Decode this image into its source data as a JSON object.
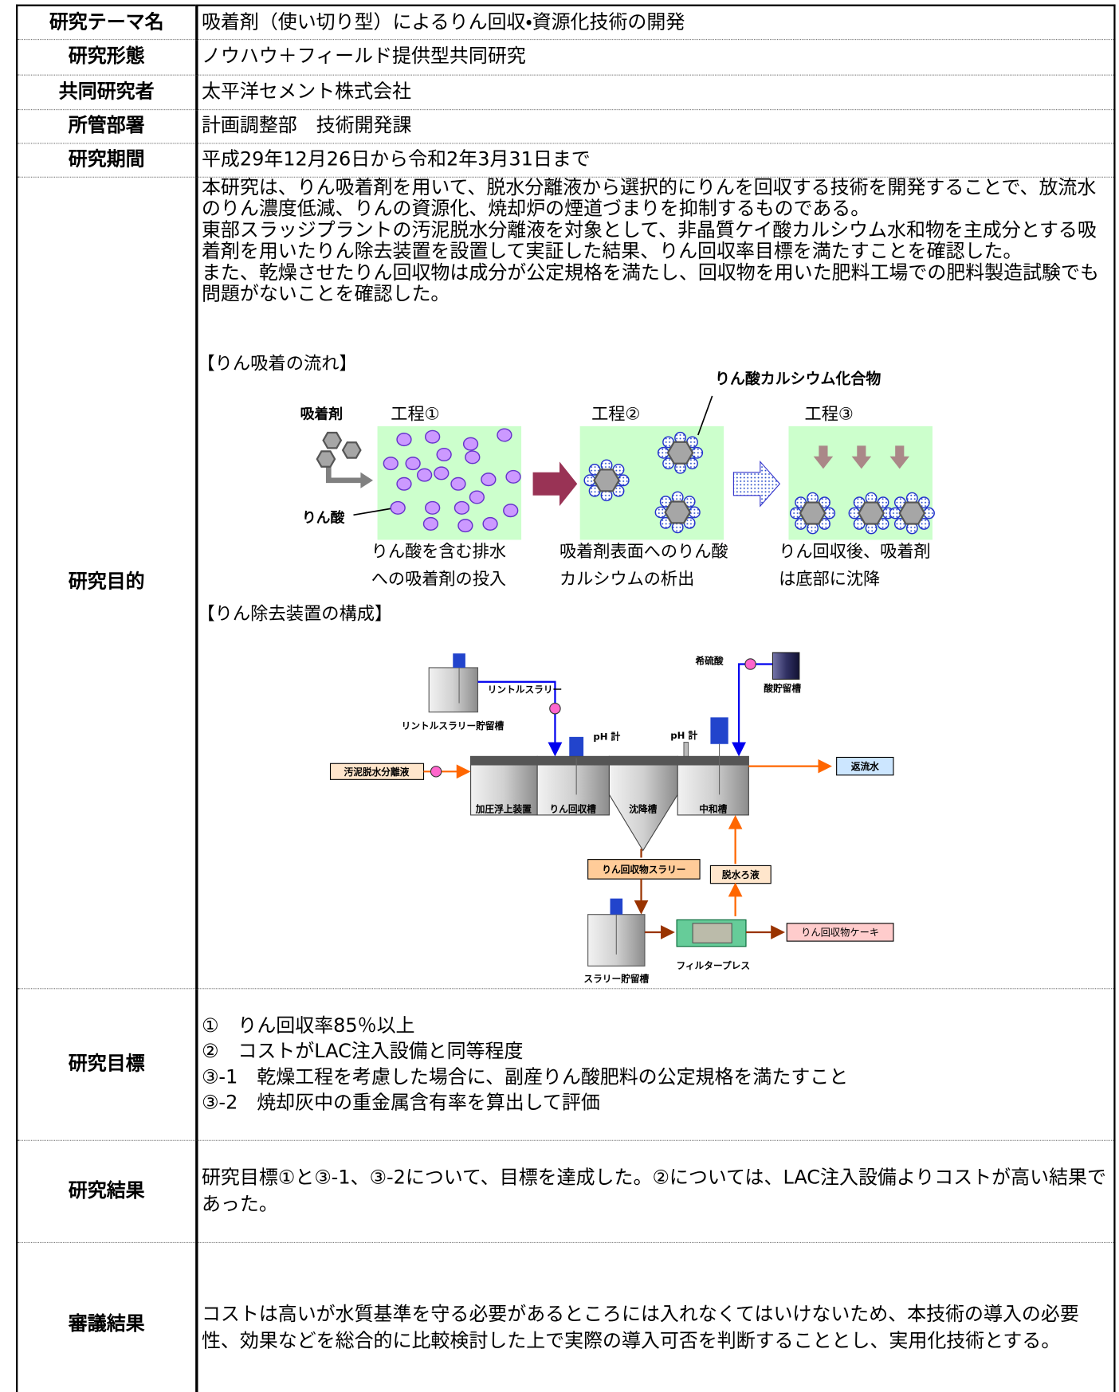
{
  "table": {
    "rows": [
      {
        "label": "研究テーマ名",
        "content": "吸着剤（使い切り型）によるりん回収・資源化技術の開発"
      },
      {
        "label": "研究形態",
        "content": "ノウハウ＋フィールド提供型共同研究"
      },
      {
        "label": "共同研究者",
        "content": "太平洋セメント株式会社"
      },
      {
        "label": "所管部署",
        "content": "計画調整部　技術開発課"
      },
      {
        "label": "研究期間",
        "content": "平成29年12月26日から令和2年3月31日まで"
      },
      {
        "label": "研究目的",
        "paragraphs": [
          "本研究は、りん吸着剤を用いて、脱水分離液から選択的にりんを回収する技術を開発することで、放流水のりん濃度低減、りんの資源化、焼却炉の煙道づまりを抑制するものである。",
          "東部スラッジプラントの汚泥脱水分離液を対象として、非晶質ケイ酸カルシウム水和物を主成分とする吸着剤を用いたりん除去装置を設置して実証した結果、りん回収率目標を満たすことを確認した。",
          "また、乾燥させたりん回収物は成分が公定規格を満たし、回収物を用いた肥料工場での肥料製造試験でも問題がないことを確認した。"
        ],
        "flow": {
          "heading": "【りん吸着の流れ】",
          "compound": "りん酸カルシウム化合物",
          "adsorbent": "吸着剤",
          "phosphate": "りん酸",
          "steps": [
            {
              "title": "工程①",
              "caption": [
                "りん酸を含む排水",
                "への吸着剤の投入"
              ]
            },
            {
              "title": "工程②",
              "caption": [
                "吸着剤表面へのりん酸",
                "カルシウムの析出"
              ]
            },
            {
              "title": "工程③",
              "caption": [
                "りん回収後、吸着剤",
                "は底部に沈降"
              ]
            }
          ]
        },
        "equipment": {
          "heading": "【りん除去装置の構成】",
          "labels": {
            "lintol_tank": "リントルスラリー貯留槽",
            "lintol_slurry": "リントルスラリー",
            "ph1": "pH 計",
            "ph2": "pH 計",
            "acid": "希硫酸",
            "acid_tank": "酸貯留槽",
            "flotation": "加圧浮上装置",
            "recovery_tank": "りん回収槽",
            "settling": "沈降槽",
            "neutral": "中和槽",
            "influent": "汚泥脱水分離液",
            "return": "返流水",
            "slurry": "りん回収物スラリー",
            "filtrate": "脱水ろ液",
            "slurry_tank": "スラリー貯留槽",
            "filter_press": "フィルタープレス",
            "cake": "りん回収物ケーキ"
          }
        }
      },
      {
        "label": "研究目標",
        "items": [
          "①　りん回収率85％以上",
          "②　コストがLAC注入設備と同等程度",
          "③-1　乾燥工程を考慮した場合に、副産りん酸肥料の公定規格を満たすこと",
          "③-2　焼却灰中の重金属含有率を算出して評価"
        ]
      },
      {
        "label": "研究結果",
        "content": "研究目標①と③-1、③-2について、目標を達成した。②については、LAC注入設備よりコストが高い結果であった。"
      },
      {
        "label": "審議結果",
        "content": "コストは高いが水質基準を守る必要があるところには入れなくてはいけないため、本技術の導入の必要性、効果などを総合的に比較検討した上で実際の導入可否を判断することとし、実用化技術とする。"
      }
    ]
  }
}
